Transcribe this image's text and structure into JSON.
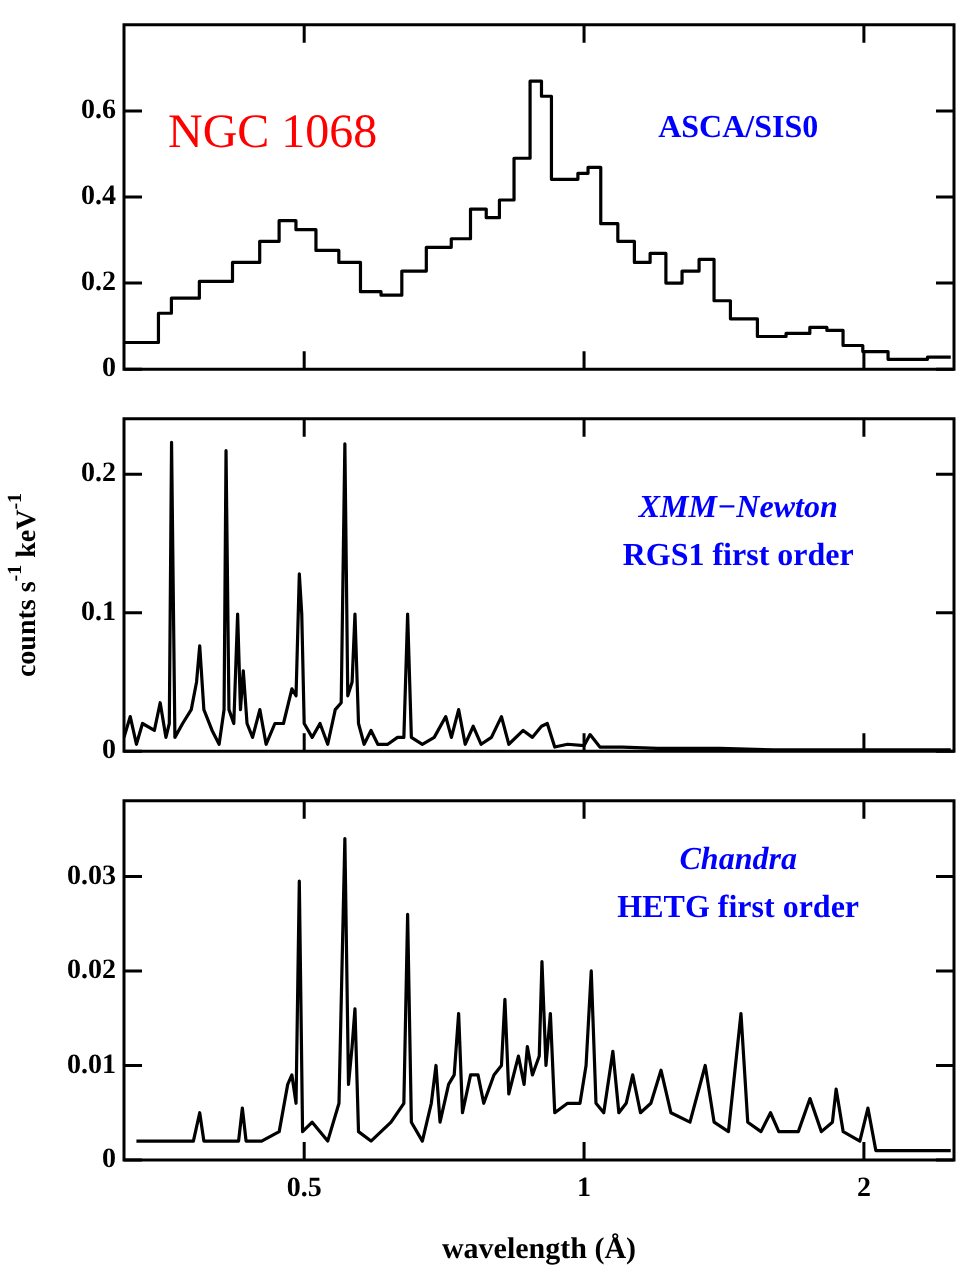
{
  "chart_data": [
    {
      "type": "step",
      "annotations": [
        "NGC 1068",
        "ASCA/SIS0"
      ],
      "xlim": [
        0.32,
        2.5
      ],
      "xticks": [
        0.5,
        1,
        2
      ],
      "log": "x",
      "tick_labels": "y",
      "ylim": [
        0,
        0.8
      ],
      "yticks": [
        0,
        0.2,
        0.4,
        0.6
      ],
      "series": [
        {
          "color": "#000000",
          "x": [
            0.32,
            0.347,
            0.35,
            0.37,
            0.402,
            0.436,
            0.46,
            0.48,
            0.5,
            0.53,
            0.56,
            0.59,
            0.62,
            0.654,
            0.7,
            0.74,
            0.77,
            0.8,
            0.822,
            0.86,
            0.89,
            0.91,
            0.935,
            0.97,
            1.0,
            1.02,
            1.065,
            1.11,
            1.156,
            1.2,
            1.25,
            1.3,
            1.36,
            1.4,
            1.475,
            1.6,
            1.7,
            1.8,
            1.85,
            1.95,
            2.04,
            2.21,
            2.48
          ],
          "values": [
            0.062,
            0.062,
            0.13,
            0.165,
            0.204,
            0.248,
            0.297,
            0.345,
            0.324,
            0.276,
            0.248,
            0.18,
            0.172,
            0.228,
            0.283,
            0.303,
            0.372,
            0.352,
            0.393,
            0.49,
            0.669,
            0.634,
            0.441,
            0.441,
            0.455,
            0.469,
            0.338,
            0.297,
            0.248,
            0.269,
            0.2,
            0.228,
            0.255,
            0.159,
            0.117,
            0.076,
            0.083,
            0.097,
            0.09,
            0.055,
            0.041,
            0.023,
            0.028
          ]
        }
      ]
    },
    {
      "type": "line",
      "ylabel": "counts s$^{-1}$ keV$^{-1}$",
      "annotations": [
        "XMM−Newton",
        "RGS1 first order"
      ],
      "xlim": [
        0.32,
        2.5
      ],
      "xticks": [
        0.5,
        1,
        2
      ],
      "log": "x",
      "tick_labels": "y",
      "ylim": [
        0,
        0.24
      ],
      "yticks": [
        0,
        0.1,
        0.2
      ],
      "series": [
        {
          "color": "#000000",
          "x": [
            0.32,
            0.325,
            0.33,
            0.335,
            0.345,
            0.35,
            0.355,
            0.358,
            0.36,
            0.363,
            0.37,
            0.378,
            0.383,
            0.386,
            0.39,
            0.398,
            0.405,
            0.41,
            0.412,
            0.415,
            0.42,
            0.424,
            0.427,
            0.43,
            0.434,
            0.44,
            0.448,
            0.455,
            0.465,
            0.475,
            0.485,
            0.49,
            0.494,
            0.497,
            0.5,
            0.51,
            0.52,
            0.53,
            0.54,
            0.548,
            0.553,
            0.557,
            0.563,
            0.567,
            0.572,
            0.58,
            0.59,
            0.6,
            0.615,
            0.63,
            0.64,
            0.646,
            0.652,
            0.67,
            0.69,
            0.71,
            0.72,
            0.733,
            0.745,
            0.76,
            0.775,
            0.795,
            0.815,
            0.83,
            0.86,
            0.88,
            0.9,
            0.913,
            0.93,
            0.96,
            1.0,
            1.015,
            1.04,
            1.1,
            1.2,
            1.4,
            1.6,
            2.0,
            2.48
          ],
          "values": [
            0.01,
            0.025,
            0.005,
            0.02,
            0.015,
            0.035,
            0.01,
            0.02,
            0.223,
            0.01,
            0.02,
            0.03,
            0.05,
            0.076,
            0.03,
            0.015,
            0.005,
            0.03,
            0.217,
            0.03,
            0.02,
            0.099,
            0.03,
            0.058,
            0.02,
            0.01,
            0.03,
            0.005,
            0.02,
            0.02,
            0.045,
            0.04,
            0.128,
            0.099,
            0.02,
            0.01,
            0.02,
            0.005,
            0.03,
            0.035,
            0.222,
            0.04,
            0.05,
            0.099,
            0.02,
            0.005,
            0.015,
            0.005,
            0.005,
            0.01,
            0.01,
            0.099,
            0.01,
            0.005,
            0.01,
            0.025,
            0.01,
            0.03,
            0.005,
            0.018,
            0.005,
            0.01,
            0.025,
            0.005,
            0.015,
            0.01,
            0.018,
            0.02,
            0.003,
            0.005,
            0.004,
            0.012,
            0.003,
            0.003,
            0.002,
            0.002,
            0.001,
            0.001,
            0.001
          ]
        }
      ]
    },
    {
      "type": "line",
      "xlabel": "wavelength (Å)",
      "annotations": [
        "Chandra",
        "HETG first order"
      ],
      "xlim": [
        0.32,
        2.5
      ],
      "xticks": [
        0.5,
        1,
        2
      ],
      "log": "x",
      "ylim": [
        0,
        0.038
      ],
      "yticks": [
        0,
        0.01,
        0.02,
        0.03
      ],
      "series": [
        {
          "color": "#000000",
          "x": [
            0.33,
            0.34,
            0.36,
            0.38,
            0.386,
            0.39,
            0.41,
            0.425,
            0.429,
            0.433,
            0.45,
            0.47,
            0.48,
            0.485,
            0.49,
            0.494,
            0.498,
            0.51,
            0.53,
            0.545,
            0.553,
            0.558,
            0.563,
            0.567,
            0.572,
            0.59,
            0.62,
            0.64,
            0.646,
            0.652,
            0.67,
            0.685,
            0.693,
            0.7,
            0.715,
            0.725,
            0.733,
            0.74,
            0.755,
            0.769,
            0.78,
            0.8,
            0.815,
            0.822,
            0.83,
            0.85,
            0.862,
            0.869,
            0.88,
            0.895,
            0.901,
            0.91,
            0.92,
            0.93,
            0.96,
            0.99,
            1.005,
            1.018,
            1.03,
            1.05,
            1.074,
            1.09,
            1.11,
            1.128,
            1.15,
            1.18,
            1.21,
            1.24,
            1.3,
            1.35,
            1.38,
            1.43,
            1.475,
            1.5,
            1.55,
            1.587,
            1.62,
            1.7,
            1.75,
            1.8,
            1.85,
            1.867,
            1.9,
            1.98,
            2.02,
            2.06,
            2.2,
            2.48
          ],
          "values": [
            0.002,
            0.002,
            0.002,
            0.002,
            0.005,
            0.002,
            0.002,
            0.002,
            0.0055,
            0.002,
            0.002,
            0.003,
            0.008,
            0.009,
            0.006,
            0.0295,
            0.003,
            0.004,
            0.002,
            0.006,
            0.034,
            0.008,
            0.012,
            0.016,
            0.003,
            0.002,
            0.004,
            0.006,
            0.026,
            0.004,
            0.002,
            0.006,
            0.01,
            0.004,
            0.008,
            0.009,
            0.0155,
            0.005,
            0.009,
            0.009,
            0.006,
            0.009,
            0.01,
            0.017,
            0.007,
            0.011,
            0.008,
            0.012,
            0.009,
            0.011,
            0.021,
            0.01,
            0.0155,
            0.005,
            0.006,
            0.006,
            0.01,
            0.02,
            0.006,
            0.005,
            0.0115,
            0.005,
            0.006,
            0.009,
            0.005,
            0.006,
            0.0095,
            0.005,
            0.004,
            0.01,
            0.004,
            0.003,
            0.0155,
            0.004,
            0.003,
            0.005,
            0.003,
            0.003,
            0.0065,
            0.003,
            0.004,
            0.0075,
            0.003,
            0.002,
            0.0055,
            0.001,
            0.001,
            0.001
          ]
        }
      ]
    }
  ]
}
